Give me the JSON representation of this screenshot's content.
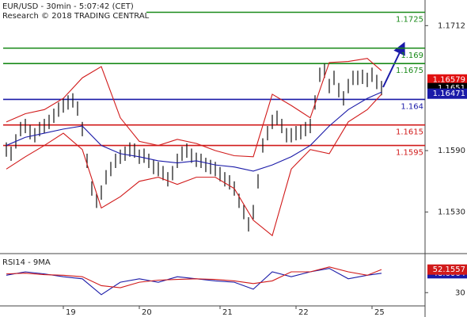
{
  "chart_data": [
    {
      "type": "ohlc",
      "title": "EUR/USD - 30min - 5:07:42 (CET)",
      "subtitle": "Research © 2018 TRADING CENTRAL",
      "categories": [
        null,
        null,
        null,
        null,
        null,
        null,
        null,
        null,
        null,
        null,
        null,
        null,
        "19",
        null,
        null,
        null,
        null,
        null,
        null,
        null,
        null,
        null,
        null,
        null,
        null,
        null,
        null,
        null,
        "20",
        null,
        null,
        null,
        null,
        null,
        null,
        null,
        null,
        null,
        null,
        null,
        null,
        null,
        null,
        null,
        null,
        "21",
        null,
        null,
        null,
        null,
        null,
        null,
        null,
        null,
        null,
        null,
        null,
        null,
        null,
        null,
        null,
        "22",
        null,
        null,
        null,
        null,
        null,
        null,
        null,
        null,
        null,
        null,
        null,
        null,
        null,
        null,
        null,
        "25",
        null,
        null
      ],
      "high": [
        1.1598,
        1.1594,
        1.1606,
        1.1618,
        1.1621,
        1.1615,
        1.1612,
        1.1618,
        1.1621,
        1.1625,
        1.1631,
        1.1637,
        1.1641,
        1.1644,
        1.1646,
        1.1638,
        1.1618,
        1.1587,
        1.156,
        1.1548,
        1.1556,
        1.1571,
        1.1579,
        1.1587,
        1.1591,
        1.1594,
        1.1598,
        1.1597,
        1.1591,
        1.1592,
        1.1587,
        1.1581,
        1.1579,
        1.1575,
        1.1569,
        1.1575,
        1.1587,
        1.1594,
        1.1597,
        1.1592,
        1.1588,
        1.1587,
        1.1583,
        1.1581,
        1.1579,
        1.1574,
        1.1569,
        1.1566,
        1.156,
        1.1548,
        1.1537,
        1.1525,
        1.1537,
        1.1567,
        1.1602,
        1.1614,
        1.1625,
        1.1629,
        1.1621,
        1.1612,
        1.1612,
        1.1614,
        1.1615,
        1.1618,
        1.1621,
        1.1644,
        1.1671,
        1.1675,
        1.166,
        1.1668,
        1.1656,
        1.1648,
        1.166,
        1.1668,
        1.1668,
        1.1669,
        1.1666,
        1.1671,
        1.1664,
        1.1658
      ],
      "low": [
        1.1584,
        1.158,
        1.1592,
        1.1604,
        1.1607,
        1.1601,
        1.1598,
        1.1604,
        1.1607,
        1.1611,
        1.1617,
        1.1623,
        1.1627,
        1.163,
        1.1632,
        1.1624,
        1.1604,
        1.1573,
        1.1546,
        1.1534,
        1.1542,
        1.1557,
        1.1565,
        1.1573,
        1.1577,
        1.158,
        1.1584,
        1.1583,
        1.1577,
        1.1578,
        1.1573,
        1.1567,
        1.1565,
        1.1561,
        1.1555,
        1.1561,
        1.1573,
        1.158,
        1.1583,
        1.1578,
        1.1574,
        1.1573,
        1.1569,
        1.1567,
        1.1565,
        1.156,
        1.1555,
        1.1552,
        1.1546,
        1.1534,
        1.1523,
        1.1511,
        1.1523,
        1.1553,
        1.1588,
        1.16,
        1.1611,
        1.1615,
        1.1607,
        1.1598,
        1.1598,
        1.16,
        1.1601,
        1.1604,
        1.1607,
        1.163,
        1.1657,
        1.1661,
        1.1646,
        1.1654,
        1.1642,
        1.1634,
        1.1646,
        1.1654,
        1.1654,
        1.1655,
        1.1652,
        1.1657,
        1.165,
        1.1644
      ],
      "bar_color": "#111111",
      "indicator_x": [
        0,
        4,
        8,
        12,
        16,
        20,
        24,
        28,
        32,
        36,
        40,
        44,
        48,
        52,
        56,
        60,
        64,
        68,
        72,
        76,
        79
      ],
      "upper_band": {
        "color": "#d11a1a",
        "values": [
          1.1618,
          1.1626,
          1.163,
          1.1641,
          1.1661,
          1.1672,
          1.1622,
          1.1599,
          1.1595,
          1.1601,
          1.1597,
          1.159,
          1.1585,
          1.1584,
          1.1645,
          1.1634,
          1.1622,
          1.1676,
          1.1677,
          1.168,
          1.1668
        ]
      },
      "lower_band": {
        "color": "#d11a1a",
        "values": [
          1.1572,
          1.1584,
          1.1595,
          1.1607,
          1.1591,
          1.1534,
          1.1545,
          1.156,
          1.1564,
          1.1557,
          1.1564,
          1.1564,
          1.1553,
          1.1522,
          1.1507,
          1.1572,
          1.1591,
          1.1587,
          1.1618,
          1.163,
          1.1645
        ]
      },
      "ma": {
        "color": "#1a1aa8",
        "values": [
          1.1595,
          1.1603,
          1.1607,
          1.1611,
          1.1614,
          1.1595,
          1.1587,
          1.1584,
          1.158,
          1.1578,
          1.158,
          1.1576,
          1.1574,
          1.157,
          1.1576,
          1.1584,
          1.1595,
          1.1614,
          1.163,
          1.1641,
          1.16471
        ]
      },
      "levels": [
        {
          "value": 1.1725,
          "color": "#1a8a1a"
        },
        {
          "value": 1.169,
          "color": "#1a8a1a"
        },
        {
          "value": 1.1675,
          "color": "#1a8a1a"
        },
        {
          "value": 1.164,
          "color": "#1a1aa8"
        },
        {
          "value": 1.1615,
          "color": "#d11a1a"
        },
        {
          "value": 1.1595,
          "color": "#d11a1a"
        }
      ],
      "band_tag": 1.16579,
      "band_tag_color": "#e01010",
      "last_price": 1.1651,
      "ylim": [
        1.1491,
        1.1737
      ],
      "yticks": [
        1.1712,
        {
          "value": 1.159,
          "label": "1.1590"
        },
        {
          "value": 1.153,
          "label": "1.1530"
        }
      ]
    },
    {
      "type": "rsi",
      "title": "RSI14 - 9MA",
      "x": [
        0,
        4,
        8,
        12,
        16,
        20,
        24,
        28,
        32,
        36,
        40,
        44,
        48,
        52,
        56,
        60,
        64,
        68,
        72,
        76,
        79
      ],
      "series": [
        {
          "color": "#1a1aa8",
          "values": [
            46.7,
            50,
            48,
            45.3,
            43.3,
            28,
            40,
            43.3,
            40,
            45.3,
            43.3,
            41.3,
            40,
            33.3,
            50,
            45.3,
            50,
            53.3,
            43.3,
            46.7,
            48.6064
          ]
        },
        {
          "color": "#d11a1a",
          "values": [
            48,
            48.7,
            47.3,
            46.7,
            45.3,
            36.7,
            34.7,
            40,
            42,
            42.7,
            43.3,
            42.7,
            41.3,
            38.7,
            41.3,
            50,
            50,
            54.7,
            50,
            46.7,
            52.1557
          ]
        }
      ],
      "ylim": [
        18,
        66
      ],
      "yticks": [
        30
      ]
    }
  ]
}
